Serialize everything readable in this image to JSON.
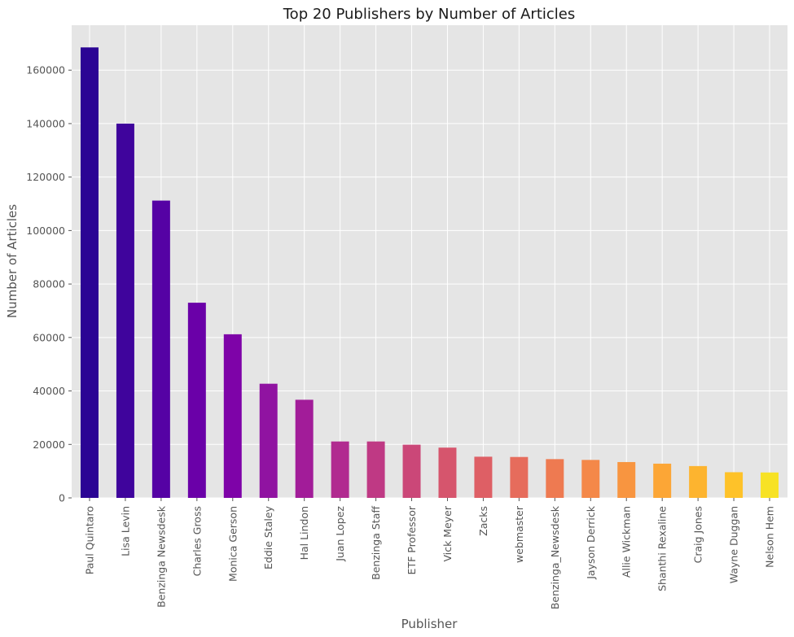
{
  "chart_data": {
    "type": "bar",
    "title": "Top 20 Publishers by Number of Articles",
    "xlabel": "Publisher",
    "ylabel": "Number of Articles",
    "ylim": [
      0,
      176800
    ],
    "yticks": [
      0,
      20000,
      40000,
      60000,
      80000,
      100000,
      120000,
      140000,
      160000
    ],
    "grid": true,
    "plot_background": "#e5e5e5",
    "colormap": "plasma",
    "categories": [
      "Paul Quintaro",
      "Lisa Levin",
      "Benzinga Newsdesk",
      "Charles Gross",
      "Monica Gerson",
      "Eddie Staley",
      "Hal Lindon",
      "Juan Lopez",
      "Benzinga Staff",
      "ETF Professor",
      "Vick Meyer",
      "Zacks",
      "webmaster",
      "Benzinga_Newsdesk",
      "Jayson Derrick",
      "Allie Wickman",
      "Shanthi Rexaline",
      "Craig Jones",
      "Wayne Duggan",
      "Nelson Hem"
    ],
    "values": [
      168500,
      140000,
      111200,
      73000,
      61200,
      42700,
      36700,
      21100,
      21100,
      19900,
      18800,
      15400,
      15300,
      14500,
      14200,
      13400,
      12800,
      11900,
      9600,
      9500
    ],
    "colors": [
      "#2b0594",
      "#3f049c",
      "#5502a4",
      "#6a00a8",
      "#7e03a8",
      "#9013a1",
      "#a21c99",
      "#b12a90",
      "#bf3984",
      "#cb4778",
      "#d6556d",
      "#de5f65",
      "#e66c5c",
      "#ee7a51",
      "#f48849",
      "#f89540",
      "#fca636",
      "#fdb42f",
      "#fec229",
      "#f7e225"
    ]
  }
}
